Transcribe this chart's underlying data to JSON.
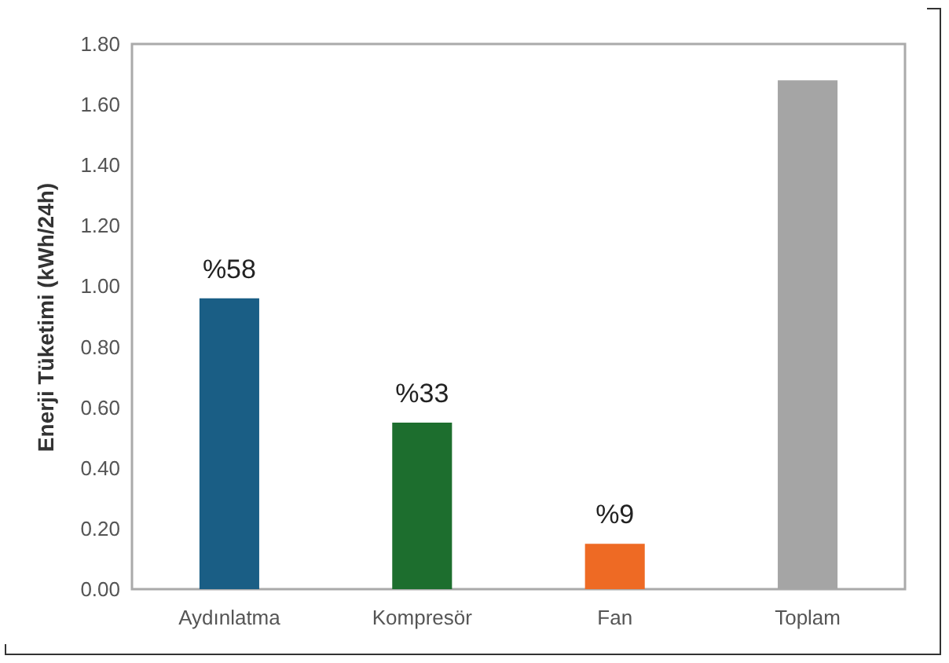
{
  "chart_data": {
    "type": "bar",
    "ylabel": "Enerji Tüketimi (kWh/24h)",
    "categories": [
      "Aydınlatma",
      "Kompresör",
      "Fan",
      "Toplam"
    ],
    "values": [
      0.96,
      0.55,
      0.15,
      1.68
    ],
    "colors": [
      "#1a5e85",
      "#1d6e2e",
      "#ee6a24",
      "#a5a5a5"
    ],
    "annotations": [
      {
        "text": "%58",
        "x": "Aydınlatma",
        "y": 0.96
      },
      {
        "text": "%33",
        "x": "Kompresör",
        "y": 0.55
      },
      {
        "text": "%9",
        "x": "Fan",
        "y": 0.15
      }
    ],
    "ylim": [
      0,
      1.8
    ],
    "yticks": [
      {
        "value": 0,
        "label": "0.00"
      },
      {
        "value": 0.2,
        "label": "0.20"
      },
      {
        "value": 0.4,
        "label": "0.40"
      },
      {
        "value": 0.6,
        "label": "0.60"
      },
      {
        "value": 0.8,
        "label": "0.80"
      },
      {
        "value": 1,
        "label": "1.00"
      },
      {
        "value": 1.2,
        "label": "1.20"
      },
      {
        "value": 1.4,
        "label": "1.40"
      },
      {
        "value": 1.6,
        "label": "1.60"
      },
      {
        "value": 1.8,
        "label": "1.80"
      }
    ],
    "grid": false
  }
}
